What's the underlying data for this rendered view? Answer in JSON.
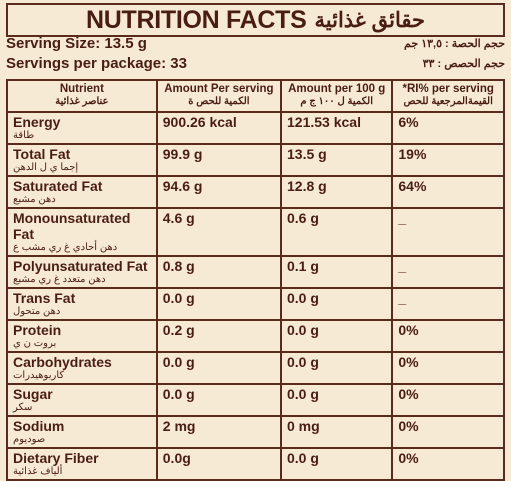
{
  "header": {
    "title": "NUTRITION FACTS",
    "title_ar": "حقائق غذائية"
  },
  "serving": {
    "size": "Serving Size: 13.5 g",
    "size_ar": "حجم الحصة : ١٣,٥ جم",
    "per_package": "Servings per package: 33",
    "per_package_ar": "حجم الحصص : ٣٣"
  },
  "table": {
    "columns": [
      {
        "en": "Nutrient",
        "ar": "عناصر غذائية"
      },
      {
        "en": "Amount Per serving",
        "ar": "الكمية للحص ة"
      },
      {
        "en": "Amount per 100 g",
        "ar": "الكمية ل ١٠٠ ج م"
      },
      {
        "en": "*RI% per serving",
        "ar": "القيمةالمرجعية للحص"
      }
    ],
    "rows": [
      [
        "Energy",
        "طاقة",
        "900.26 kcal",
        "121.53 kcal",
        "6%"
      ],
      [
        "Total Fat",
        "إجما ي ل الدهن",
        "99.9 g",
        "13.5 g",
        "19%"
      ],
      [
        "Saturated Fat",
        "دهن مشبع",
        "94.6 g",
        "12.8 g",
        "64%"
      ],
      [
        "Monounsaturated Fat",
        "دهن أحادي غ ري مشب ع",
        "4.6 g",
        "0.6 g",
        "_"
      ],
      [
        "Polyunsaturated Fat",
        "دهن متعدد غ ري مشبع",
        "0.8 g",
        "0.1 g",
        "_"
      ],
      [
        "Trans Fat",
        "دهن متحول",
        "0.0 g",
        "0.0 g",
        "_"
      ],
      [
        "Protein",
        "بروت ن ي",
        "0.2 g",
        "0.0 g",
        "0%"
      ],
      [
        "Carbohydrates",
        "كاربوهيدرات",
        "0.0 g",
        "0.0 g",
        "0%"
      ],
      [
        "Sugar",
        "سكر",
        "0.0 g",
        "0.0 g",
        "0%"
      ],
      [
        "Sodium",
        "صوديوم",
        "2 mg",
        "0 mg",
        "0%"
      ],
      [
        "Dietary Fiber",
        "ألياف غذائية",
        "0.0g",
        "0.0 g",
        "0%"
      ]
    ]
  }
}
